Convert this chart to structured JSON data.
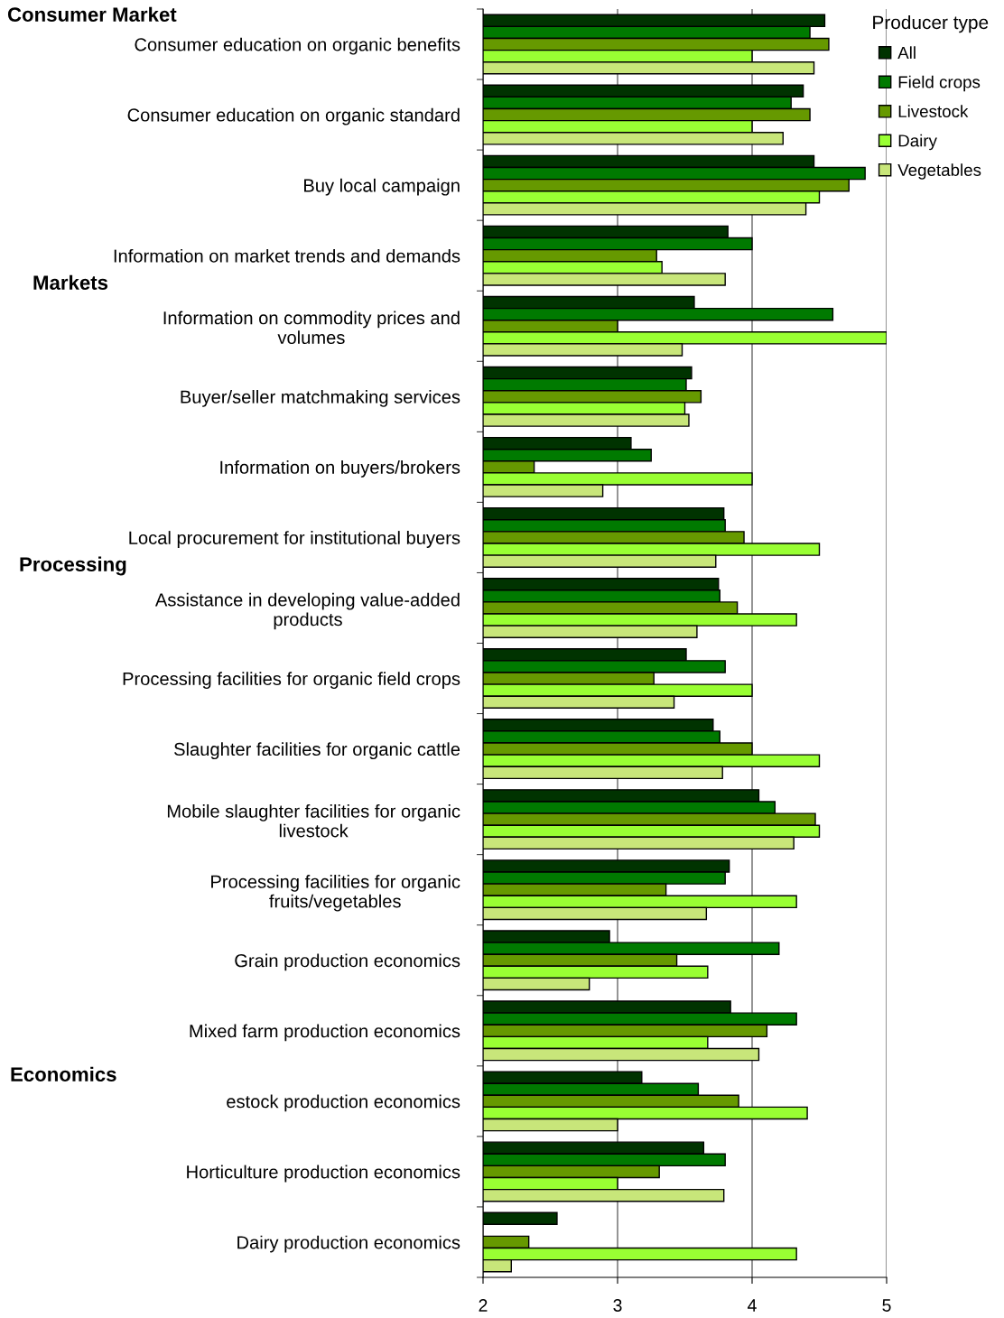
{
  "chart_data": {
    "type": "bar",
    "orientation": "horizontal",
    "categories": [
      "Consumer education on organic benefits",
      "Consumer education on organic standard",
      "Buy local campaign",
      "Information on market trends and demands",
      "Information on commodity prices and\nvolumes",
      "Buyer/seller matchmaking services",
      "Information on buyers/brokers",
      "Local procurement for institutional buyers",
      "Assistance in developing value-added\nproducts",
      "Processing facilities for organic field crops",
      "Slaughter facilities for organic cattle",
      "Mobile slaughter facilities for organic\nlivestock",
      "Processing facilities for organic\nfruits/vegetables",
      "Grain production economics",
      "Mixed farm production economics",
      "estock production economics",
      "Horticulture production economics",
      "Dairy production economics"
    ],
    "series": [
      {
        "name": "All",
        "color": "#003300",
        "values": [
          4.54,
          4.38,
          4.46,
          3.82,
          3.57,
          3.55,
          3.1,
          3.79,
          3.75,
          3.51,
          3.71,
          4.05,
          3.83,
          2.94,
          3.84,
          3.18,
          3.64,
          2.55
        ]
      },
      {
        "name": "Field crops",
        "color": "#007a00",
        "values": [
          4.43,
          4.29,
          4.84,
          4.0,
          4.6,
          3.51,
          3.25,
          3.8,
          3.76,
          3.8,
          3.76,
          4.17,
          3.8,
          4.2,
          4.33,
          3.6,
          3.8,
          null
        ]
      },
      {
        "name": "Livestock",
        "color": "#669900",
        "values": [
          4.57,
          4.43,
          4.72,
          3.29,
          3.0,
          3.62,
          2.38,
          3.94,
          3.89,
          3.27,
          4.0,
          4.47,
          3.36,
          3.44,
          4.11,
          3.9,
          3.31,
          2.34
        ]
      },
      {
        "name": "Dairy",
        "color": "#99ff33",
        "values": [
          4.0,
          4.0,
          4.5,
          3.33,
          5.0,
          3.5,
          4.0,
          4.5,
          4.33,
          4.0,
          4.5,
          4.5,
          4.33,
          3.67,
          3.67,
          4.41,
          3.0,
          4.33
        ]
      },
      {
        "name": "Vegetables",
        "color": "#c8e67a",
        "values": [
          4.46,
          4.23,
          4.4,
          3.8,
          3.48,
          3.53,
          2.89,
          3.73,
          3.59,
          3.42,
          3.78,
          4.31,
          3.66,
          2.79,
          4.05,
          3.0,
          3.79,
          2.21
        ]
      }
    ],
    "xlim": [
      2,
      5
    ],
    "xticks": [
      2,
      3,
      4,
      5
    ],
    "grid": "x",
    "legend": "top right",
    "legend_title": "Producer type",
    "annotations": [
      "Consumer Market",
      "Markets",
      "Processing",
      "Economics"
    ]
  }
}
